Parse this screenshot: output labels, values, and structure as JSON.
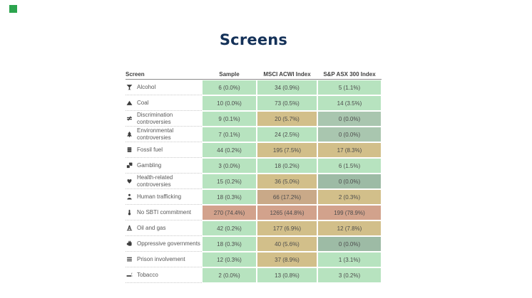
{
  "logo": {
    "color": "#2ca44e"
  },
  "title": "Screens",
  "table": {
    "headers": [
      "Screen",
      "Sample",
      "MSCI ACWI Index",
      "S&P ASX 300 Index"
    ],
    "palette": {
      "green": "#b7e3bf",
      "tan": "#d2bf8a",
      "brown": "#c9a988",
      "salmon": "#d2a28c",
      "sage": "#a9c6af",
      "sage_dark": "#9dbba5"
    },
    "rows": [
      {
        "label": "Alcohol",
        "icon": "cocktail-icon",
        "cells": [
          {
            "text": "6 (0.0%)",
            "tone": "green"
          },
          {
            "text": "34 (0.9%)",
            "tone": "green"
          },
          {
            "text": "5 (1.1%)",
            "tone": "green"
          }
        ]
      },
      {
        "label": "Coal",
        "icon": "mountain-icon",
        "cells": [
          {
            "text": "10 (0.0%)",
            "tone": "green"
          },
          {
            "text": "73 (0.5%)",
            "tone": "green"
          },
          {
            "text": "14 (3.5%)",
            "tone": "green"
          }
        ]
      },
      {
        "label": "Discrimination controversies",
        "icon": "not-equal-icon",
        "cells": [
          {
            "text": "9 (0.1%)",
            "tone": "green"
          },
          {
            "text": "20 (5.7%)",
            "tone": "tan"
          },
          {
            "text": "0 (0.0%)",
            "tone": "sage"
          }
        ]
      },
      {
        "label": "Environmental controversies",
        "icon": "tree-icon",
        "cells": [
          {
            "text": "7 (0.1%)",
            "tone": "green"
          },
          {
            "text": "24 (2.5%)",
            "tone": "green"
          },
          {
            "text": "0 (0.0%)",
            "tone": "sage"
          }
        ]
      },
      {
        "label": "Fossil fuel",
        "icon": "oil-barrel-icon",
        "cells": [
          {
            "text": "44 (0.2%)",
            "tone": "green"
          },
          {
            "text": "195 (7.5%)",
            "tone": "tan"
          },
          {
            "text": "17 (8.3%)",
            "tone": "tan"
          }
        ]
      },
      {
        "label": "Gambling",
        "icon": "dice-icon",
        "cells": [
          {
            "text": "3 (0.0%)",
            "tone": "green"
          },
          {
            "text": "18 (0.2%)",
            "tone": "green"
          },
          {
            "text": "6 (1.5%)",
            "tone": "green"
          }
        ]
      },
      {
        "label": "Health-related controversies",
        "icon": "heartbeat-icon",
        "cells": [
          {
            "text": "15 (0.2%)",
            "tone": "green"
          },
          {
            "text": "36 (5.0%)",
            "tone": "tan"
          },
          {
            "text": "0 (0.0%)",
            "tone": "sage_dark"
          }
        ]
      },
      {
        "label": "Human trafficking",
        "icon": "person-icon",
        "cells": [
          {
            "text": "18 (0.3%)",
            "tone": "green"
          },
          {
            "text": "66 (17.2%)",
            "tone": "brown"
          },
          {
            "text": "2 (0.3%)",
            "tone": "tan"
          }
        ]
      },
      {
        "label": "No SBTI commitment",
        "icon": "thermometer-icon",
        "cells": [
          {
            "text": "270 (74.4%)",
            "tone": "salmon"
          },
          {
            "text": "1265 (44.8%)",
            "tone": "salmon"
          },
          {
            "text": "199 (78.9%)",
            "tone": "salmon"
          }
        ]
      },
      {
        "label": "Oil and gas",
        "icon": "oil-well-icon",
        "cells": [
          {
            "text": "42 (0.2%)",
            "tone": "green"
          },
          {
            "text": "177 (6.9%)",
            "tone": "tan"
          },
          {
            "text": "12 (7.8%)",
            "tone": "tan"
          }
        ]
      },
      {
        "label": "Oppressive governments",
        "icon": "fist-icon",
        "cells": [
          {
            "text": "18 (0.3%)",
            "tone": "green"
          },
          {
            "text": "40 (5.6%)",
            "tone": "tan"
          },
          {
            "text": "0 (0.0%)",
            "tone": "sage_dark"
          }
        ]
      },
      {
        "label": "Prison involvement",
        "icon": "prison-bars-icon",
        "cells": [
          {
            "text": "12 (0.3%)",
            "tone": "green"
          },
          {
            "text": "37 (8.9%)",
            "tone": "tan"
          },
          {
            "text": "1 (3.1%)",
            "tone": "green"
          }
        ]
      },
      {
        "label": "Tobacco",
        "icon": "cigarette-icon",
        "cells": [
          {
            "text": "2 (0.0%)",
            "tone": "green"
          },
          {
            "text": "13 (0.8%)",
            "tone": "green"
          },
          {
            "text": "3 (0.2%)",
            "tone": "green"
          }
        ]
      }
    ]
  },
  "chart_data": {
    "type": "table",
    "title": "Screens",
    "columns": [
      "Screen",
      "Sample",
      "MSCI ACWI Index",
      "S&P ASX 300 Index"
    ],
    "rows": [
      [
        "Alcohol",
        "6 (0.0%)",
        "34 (0.9%)",
        "5 (1.1%)"
      ],
      [
        "Coal",
        "10 (0.0%)",
        "73 (0.5%)",
        "14 (3.5%)"
      ],
      [
        "Discrimination controversies",
        "9 (0.1%)",
        "20 (5.7%)",
        "0 (0.0%)"
      ],
      [
        "Environmental controversies",
        "7 (0.1%)",
        "24 (2.5%)",
        "0 (0.0%)"
      ],
      [
        "Fossil fuel",
        "44 (0.2%)",
        "195 (7.5%)",
        "17 (8.3%)"
      ],
      [
        "Gambling",
        "3 (0.0%)",
        "18 (0.2%)",
        "6 (1.5%)"
      ],
      [
        "Health-related controversies",
        "15 (0.2%)",
        "36 (5.0%)",
        "0 (0.0%)"
      ],
      [
        "Human trafficking",
        "18 (0.3%)",
        "66 (17.2%)",
        "2 (0.3%)"
      ],
      [
        "No SBTI commitment",
        "270 (74.4%)",
        "1265 (44.8%)",
        "199 (78.9%)"
      ],
      [
        "Oil and gas",
        "42 (0.2%)",
        "177 (6.9%)",
        "12 (7.8%)"
      ],
      [
        "Oppressive governments",
        "18 (0.3%)",
        "40 (5.6%)",
        "0 (0.0%)"
      ],
      [
        "Prison involvement",
        "12 (0.3%)",
        "37 (8.9%)",
        "1 (3.1%)"
      ],
      [
        "Tobacco",
        "2 (0.0%)",
        "13 (0.8%)",
        "3 (0.2%)"
      ]
    ],
    "cell_color_legend": "green=low exposure, tan/brown=medium, salmon=high, sage=zero holdings"
  }
}
